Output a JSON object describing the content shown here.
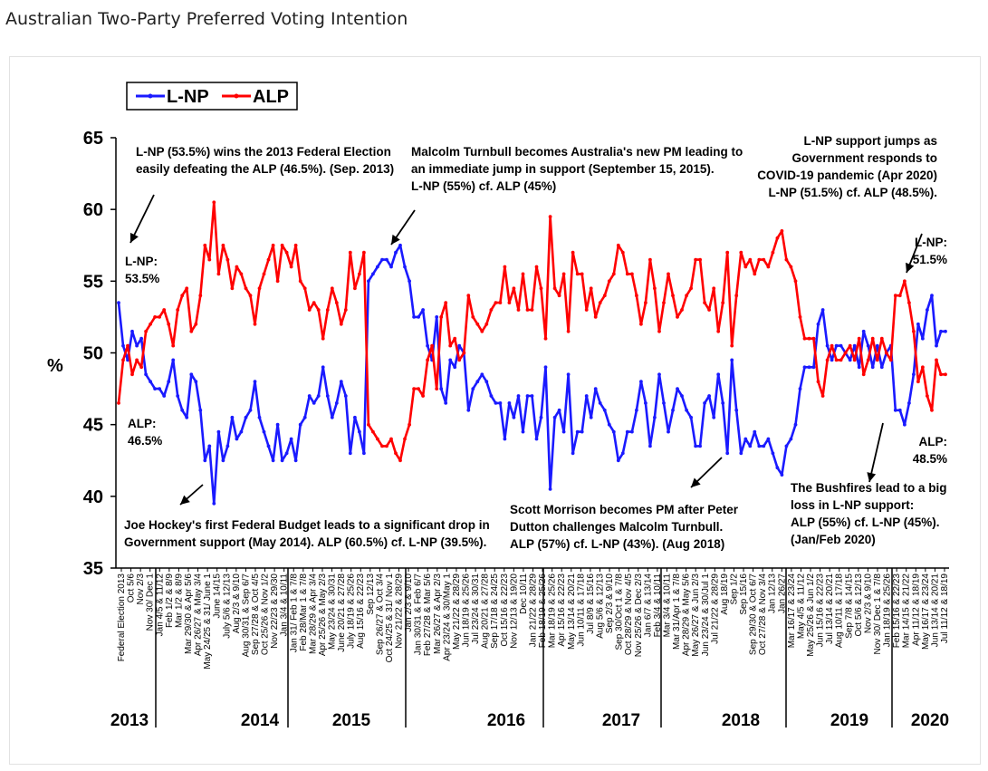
{
  "page": {
    "title": "Australian Two-Party Preferred Voting Intention"
  },
  "colors": {
    "lnp": "#1a1aff",
    "alp": "#ff0000"
  },
  "chart_data": {
    "type": "line",
    "ylabel": "%",
    "ylim": [
      35,
      65
    ],
    "yticks": [
      "35",
      "40",
      "45",
      "50",
      "55",
      "60",
      "65"
    ],
    "legend": {
      "items": [
        "L-NP",
        "ALP"
      ],
      "placement": "top-left"
    },
    "x_tick_labels": [
      "Federal Election 2013",
      "Oct 5/6",
      "Nov 2/3",
      "Nov 30/ Dec 1",
      "Jan 4/5 & 11/12",
      "Feb 1/2 & 8/9",
      "Mar 1/2 & 8/9",
      "Mar 29/30 & Apr 5/6",
      "Apr 26/27 & May 3/4",
      "May 24/25 & 31/ June 1",
      "June 14/15",
      "July 5/6 & 12/13",
      "Aug 2/3 & 9/10",
      "Aug 30/31 & Sep 6/7",
      "Sep 27/28 & Oct 4/5",
      "Oct 25/26 & Nov 1/2",
      "Nov 22/23 & 29/30",
      "Jan 3/4 & 10/11",
      "Jan 31/ Feb 1 & 7/8",
      "Feb 28/Mar 1 & 7/8",
      "Mar 28/29 & Apr 3/4",
      "Apr 25/26 & May 2/3",
      "May 23/24 & 30/31",
      "June 20/21 & 27/28",
      "July 18/19 & 25/26",
      "Aug 15/16 & 22/23",
      "Sep 12/13",
      "Sep 26/27 & Oct 3/4",
      "Oct 24/25 & 31/ Nov 1",
      "Nov 21/22 & 28/29",
      "Jan 2/3 & 9/10",
      "Jan 30/31 & Feb 6/7",
      "Feb 27/28 & Mar 5/6",
      "Mar 26/27 & Apr 2/3",
      "Apr 23/24 & 30/May 1",
      "May 21/22 & 28/29",
      "Jun 18/19 & 25/26",
      "Jul 23/24 & 30/31",
      "Aug 20/21 & 27/28",
      "Sep 17/18 & 24/25",
      "Oct 15/16 & 22/23",
      "Nov 12/13 & 19/20",
      "Dec 10/11",
      "Jan 21/22 & 28/29",
      "Feb 18/19 & 25/26",
      "Mar 18/19 & 25/26",
      "Apr 15/16 & 22/23",
      "May 13/14 & 20/21",
      "Jun 10/11 & 17/18",
      "Jul 8/9 & 15/16",
      "Aug 5/6 & 12/13",
      "Sep 2/3 & 9/10",
      "Sep 30/Oct 1 & 7/8",
      "Oct 28/29 & Nov 4/5",
      "Nov 25/26 & Dec 2/3",
      "Jan 6/7 & 13/14",
      "Feb 3/4 & 10/11",
      "Mar 3/4 & 10/11",
      "Mar 31/Apr 1 & 7/8",
      "Apr 28/29 & May 5/6",
      "May 26/27 & Jun 2/3",
      "Jun 23/24 & 30/Jul 1",
      "Jul 21/22 & 28/29",
      "Aug 18/19",
      "Sep 1/2",
      "Sep 15/16",
      "Sep 29/30 & Oct 6/7",
      "Oct 27/28 & Nov 3/4",
      "Jan 12/13",
      "Jan 26/27",
      "Mar 16/17 & 23/24",
      "May 4/5 & 11/12",
      "May 25/26 & Jun 1/2",
      "Jun 15/16 & 22/23",
      "Jul 13/14 & 20/21",
      "Aug 10/11 & 17/18",
      "Sep 7/8 & 14/15",
      "Oct 5/6 & 12/13",
      "Nov 2/3 & 9/10",
      "Nov 30/ Dec 1 & 7/8",
      "Jan 18/19 & 25/26",
      "Feb 15/16 & 22/23",
      "Mar 14/15 & 21/22",
      "Apr 11/12 & 18/19",
      "May 16/17 & 23/24",
      "Jun 13/14 & 20/21",
      "Jul 11/12 & 18/19"
    ],
    "years": [
      "2013",
      "2014",
      "2015",
      "2016",
      "2017",
      "2018",
      "2019",
      "2020"
    ],
    "series": [
      {
        "name": "L-NP",
        "values": [
          53.5,
          50.5,
          49.5,
          51.5,
          50.5,
          51,
          48.5,
          48,
          47.5,
          47.5,
          47,
          48,
          49.5,
          47,
          46,
          45.5,
          48.5,
          48,
          46,
          42.5,
          43.5,
          39.5,
          44.5,
          42.5,
          43.5,
          45.5,
          44,
          44.5,
          45.5,
          46,
          48,
          45.5,
          44.5,
          43.5,
          42.5,
          45,
          42.5,
          43,
          44,
          42.5,
          45,
          45.5,
          47,
          46.5,
          47,
          49,
          47,
          45.5,
          46.5,
          48,
          47,
          43,
          45.5,
          44.5,
          43,
          55,
          55.5,
          56,
          56.5,
          56.5,
          56,
          57,
          57.5,
          56,
          55,
          52.5,
          52.5,
          53,
          50.5,
          49.5,
          52.5,
          47.5,
          46.5,
          49.5,
          49,
          50.5,
          50,
          46,
          47.5,
          48,
          48.5,
          48,
          47,
          46.5,
          46.5,
          44,
          46.5,
          45.5,
          47,
          44.5,
          47,
          47,
          44,
          45.5,
          49,
          40.5,
          45.5,
          46,
          44.5,
          48.5,
          43,
          44.5,
          44.5,
          47,
          45.5,
          47.5,
          46.5,
          46,
          45,
          44.5,
          42.5,
          43,
          44.5,
          44.5,
          46,
          48,
          46.5,
          43.5,
          45.5,
          48.5,
          46.5,
          44.5,
          46,
          47.5,
          47,
          46,
          45.5,
          43.5,
          43.5,
          46.5,
          47,
          45.5,
          48.5,
          46.5,
          43,
          49.5,
          46,
          43,
          44,
          43.5,
          44.5,
          43.5,
          43.5,
          44,
          43,
          42,
          41.5,
          43.5,
          44,
          45,
          47.5,
          49,
          49,
          49,
          52,
          53,
          50.5,
          49.5,
          50.5,
          50.5,
          50,
          49.5,
          50.5,
          49,
          51.5,
          50.5,
          49,
          50.5,
          49,
          50,
          50.5,
          46,
          46,
          45,
          46.5,
          48.5,
          52,
          51,
          53,
          54,
          50.5,
          51.5,
          51.5
        ]
      },
      {
        "name": "ALP",
        "values": [
          46.5,
          49.5,
          50.5,
          48.5,
          49.5,
          49,
          51.5,
          52,
          52.5,
          52.5,
          53,
          52,
          50.5,
          53,
          54,
          54.5,
          51.5,
          52,
          54,
          57.5,
          56.5,
          60.5,
          55.5,
          57.5,
          56.5,
          54.5,
          56,
          55.5,
          54.5,
          54,
          52,
          54.5,
          55.5,
          56.5,
          57.5,
          55,
          57.5,
          57,
          56,
          57.5,
          55,
          54.5,
          53,
          53.5,
          53,
          51,
          53,
          54.5,
          53.5,
          52,
          53,
          57,
          54.5,
          55.5,
          57,
          45,
          44.5,
          44,
          43.5,
          43.5,
          44,
          43,
          42.5,
          44,
          45,
          47.5,
          47.5,
          47,
          49.5,
          50.5,
          47.5,
          52.5,
          53.5,
          50.5,
          51,
          49.5,
          50,
          54,
          52.5,
          52,
          51.5,
          52,
          53,
          53.5,
          53.5,
          56,
          53.5,
          54.5,
          53,
          55.5,
          53,
          53,
          56,
          54.5,
          51,
          59.5,
          54.5,
          54,
          55.5,
          51.5,
          57,
          55.5,
          55.5,
          53,
          54.5,
          52.5,
          53.5,
          54,
          55,
          55.5,
          57.5,
          57,
          55.5,
          55.5,
          54,
          52,
          53.5,
          56.5,
          54.5,
          51.5,
          53.5,
          55.5,
          54,
          52.5,
          53,
          54,
          54.5,
          56.5,
          56.5,
          53.5,
          53,
          54.5,
          51.5,
          53.5,
          57,
          50.5,
          54,
          57,
          56,
          56.5,
          55.5,
          56.5,
          56.5,
          56,
          57,
          58,
          58.5,
          56.5,
          56,
          55,
          52.5,
          51,
          51,
          51,
          48,
          47,
          49.5,
          50.5,
          49.5,
          49.5,
          50,
          50.5,
          49.5,
          51,
          48.5,
          49.5,
          51,
          49.5,
          51,
          50,
          49.5,
          54,
          54,
          55,
          53.5,
          51.5,
          48,
          49,
          47,
          46,
          49.5,
          48.5,
          48.5
        ]
      }
    ],
    "annotations": [
      {
        "lines": [
          "L-NP (53.5%) wins the 2013 Federal Election",
          "easily defeating the ALP (46.5%). (Sep. 2013)"
        ]
      },
      {
        "lines": [
          "Malcolm Turnbull becomes Australia's new PM leading to",
          "an immediate jump in support (September 15, 2015).",
          "L-NP (55%) cf. ALP (45%)"
        ]
      },
      {
        "lines": [
          "L-NP support jumps as",
          "Government responds to",
          "COVID-19 pandemic (Apr 2020)",
          "L-NP (51.5%) cf. ALP (48.5%)."
        ]
      },
      {
        "lines": [
          "L-NP:",
          "53.5%"
        ]
      },
      {
        "lines": [
          "ALP:",
          "46.5%"
        ]
      },
      {
        "lines": [
          "L-NP:",
          "51.5%"
        ]
      },
      {
        "lines": [
          "ALP:",
          "48.5%"
        ]
      },
      {
        "lines": [
          "Joe Hockey's first Federal Budget leads to a significant drop in",
          "Government support (May 2014). ALP (60.5%) cf. L-NP (39.5%)."
        ]
      },
      {
        "lines": [
          "Scott Morrison becomes PM after Peter",
          "Dutton challenges Malcolm Turnbull.",
          "ALP (57%) cf. L-NP (43%). (Aug 2018)"
        ]
      },
      {
        "lines": [
          "The Bushfires  lead to a big",
          "loss in L-NP support:",
          "ALP (55%) cf. L-NP (45%).",
          "(Jan/Feb 2020)"
        ]
      }
    ]
  }
}
